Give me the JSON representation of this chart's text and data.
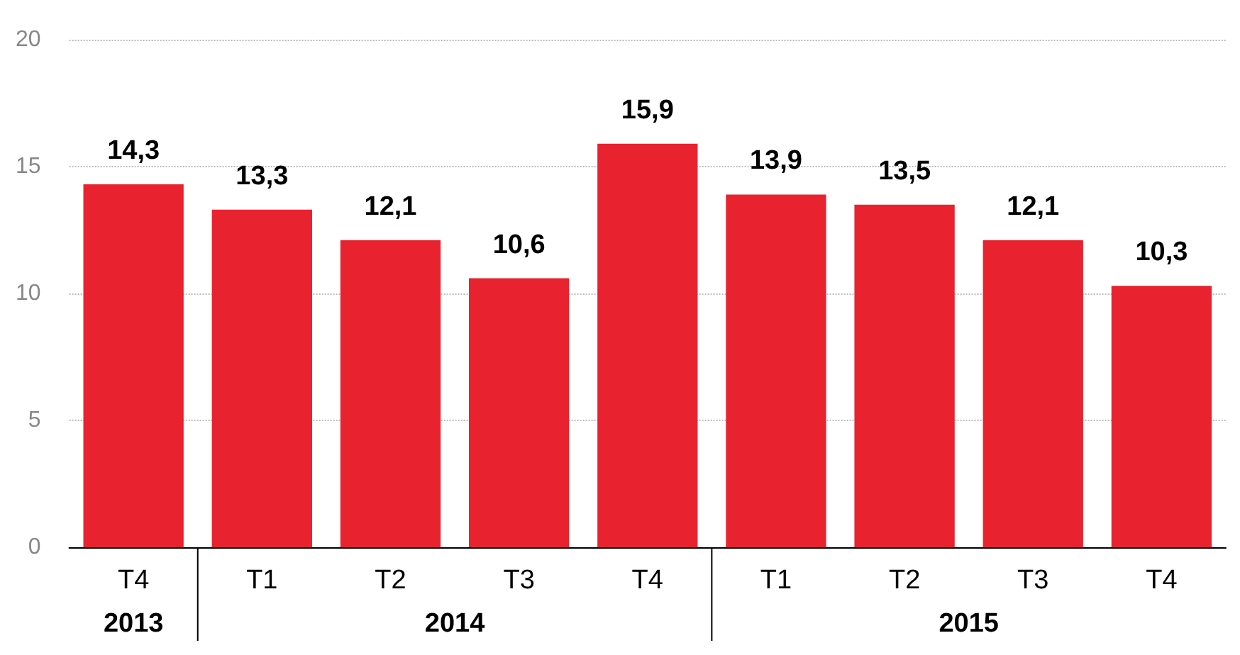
{
  "chart_data": {
    "type": "bar",
    "categories": [
      "T4",
      "T1",
      "T2",
      "T3",
      "T4",
      "T1",
      "T2",
      "T3",
      "T4"
    ],
    "values": [
      14.3,
      13.3,
      12.1,
      10.6,
      15.9,
      13.9,
      13.5,
      12.1,
      10.3
    ],
    "value_labels": [
      "14,3",
      "13,3",
      "12,1",
      "10,6",
      "15,9",
      "13,9",
      "13,5",
      "12,1",
      "10,3"
    ],
    "color": "#e8222f",
    "ylim": [
      0,
      20
    ],
    "yticks": [
      0,
      5,
      10,
      15,
      20
    ],
    "grid": "y",
    "annotations": [
      "2013",
      "2014",
      "2015"
    ]
  }
}
